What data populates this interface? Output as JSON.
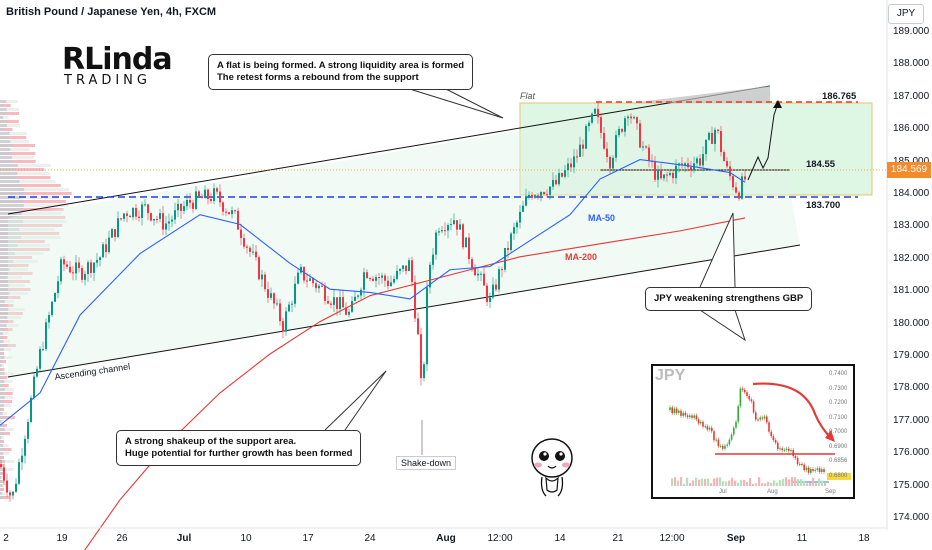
{
  "header": {
    "title": "British Pound / Japanese Yen, 4h, FXCM",
    "symbol_badge": "JPY"
  },
  "logo": {
    "main": "RLinda",
    "sub": "TRADING"
  },
  "price_axis": {
    "labels": [
      "189.000",
      "188.000",
      "187.000",
      "186.000",
      "185.000",
      "184.000",
      "183.000",
      "182.000",
      "181.000",
      "180.000",
      "179.000",
      "178.000",
      "177.000",
      "176.000",
      "175.000",
      "174.000"
    ],
    "current_price": "184.569",
    "current_color": "#f48a2b"
  },
  "time_axis": {
    "labels": [
      {
        "text": "2",
        "bold": false
      },
      {
        "text": "19",
        "bold": false
      },
      {
        "text": "26",
        "bold": false
      },
      {
        "text": "Jul",
        "bold": true
      },
      {
        "text": "10",
        "bold": false
      },
      {
        "text": "17",
        "bold": false
      },
      {
        "text": "24",
        "bold": false
      },
      {
        "text": "Aug",
        "bold": true
      },
      {
        "text": "12:00",
        "bold": false
      },
      {
        "text": "14",
        "bold": false
      },
      {
        "text": "21",
        "bold": false
      },
      {
        "text": "12:00",
        "bold": false
      },
      {
        "text": "Sep",
        "bold": true
      },
      {
        "text": "11",
        "bold": false
      },
      {
        "text": "18",
        "bold": false
      }
    ]
  },
  "annotations": {
    "callout_top": {
      "line1": "A flat is being formed. A strong liquidity area is formed",
      "line2": "The retest forms a rebound from the support"
    },
    "callout_bottom": {
      "line1": "A strong shakeup of the support area.",
      "line2": "Huge potential for further growth has been formed"
    },
    "callout_right": "JPY weakening strengthens GBP",
    "flat_label": "Flat",
    "channel_label": "Ascending channel",
    "shake_label": "Shake-down",
    "ma50_label": "MA-50",
    "ma200_label": "MA-200",
    "level_top": "186.765",
    "level_mid": "184.55",
    "level_support": "183.700"
  },
  "colors": {
    "up": "#089981",
    "down": "#f23645",
    "ma50": "#2962ff",
    "ma200": "#e53935",
    "flat_zone": "#c8f0d2",
    "support_line": "#1e40e6",
    "resistance_line": "#e53935"
  },
  "inset": {
    "title": "JPY",
    "price_labels": [
      "0.7400",
      "0.7300",
      "0.7200",
      "0.7100",
      "0.7000",
      "0.6900",
      "0.6856",
      "0.6800"
    ],
    "x_labels": [
      "Jul",
      "Aug",
      "Sep"
    ]
  }
}
